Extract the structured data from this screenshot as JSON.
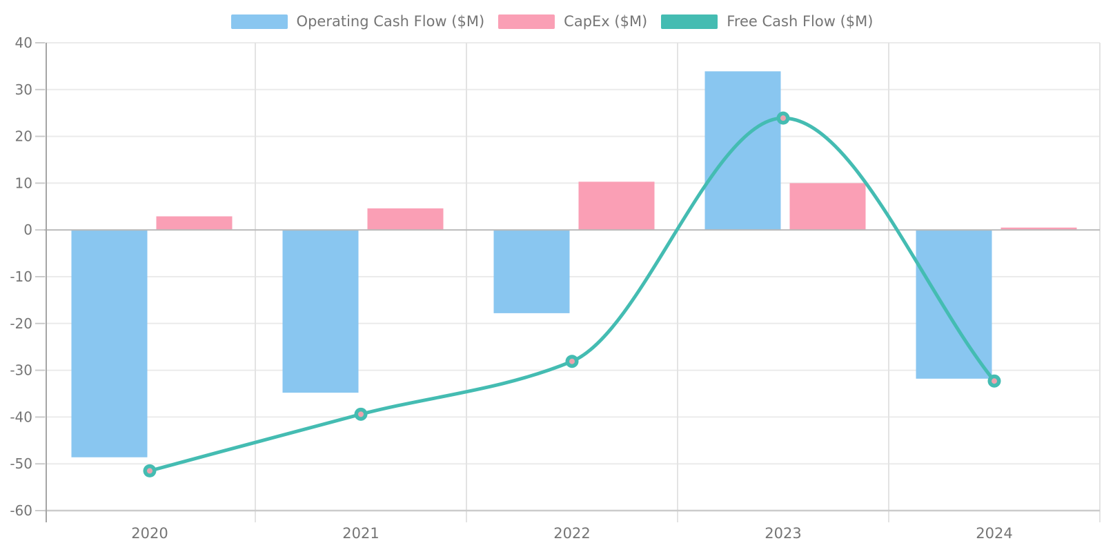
{
  "chart_data": {
    "type": "combo-bar-line",
    "title": "",
    "categories": [
      "2020",
      "2021",
      "2022",
      "2023",
      "2024"
    ],
    "series": [
      {
        "name": "Operating Cash Flow ($M)",
        "type": "bar",
        "color": "#89C6F0",
        "values": [
          -48.6,
          -34.8,
          -17.8,
          33.9,
          -31.8
        ]
      },
      {
        "name": "CapEx ($M)",
        "type": "bar",
        "color": "#FA9FB5",
        "values": [
          2.9,
          4.6,
          10.3,
          10.0,
          0.5
        ]
      },
      {
        "name": "Free Cash Flow ($M)",
        "type": "line",
        "color": "#44BCB2",
        "smooth": true,
        "marker": "ring",
        "marker_fill": "#ECA3AE",
        "values": [
          -51.5,
          -39.4,
          -28.1,
          23.9,
          -32.3
        ]
      }
    ],
    "xlabel": "",
    "ylabel": "",
    "ylim": [
      -60,
      40
    ],
    "y_ticks": [
      40,
      30,
      20,
      10,
      0,
      -10,
      -20,
      -30,
      -40,
      -50,
      -60
    ],
    "grid": true,
    "legend_position": "top",
    "colors": {
      "axis_text": "#757575",
      "grid_h": "#EBEBEB",
      "grid_v": "#E3E3E3",
      "zero_line": "#B9B9B9",
      "bottom_line": "#CBCBCB",
      "axis_line": "#A5A5A5",
      "tick_mark": "#CBCBCB"
    }
  }
}
